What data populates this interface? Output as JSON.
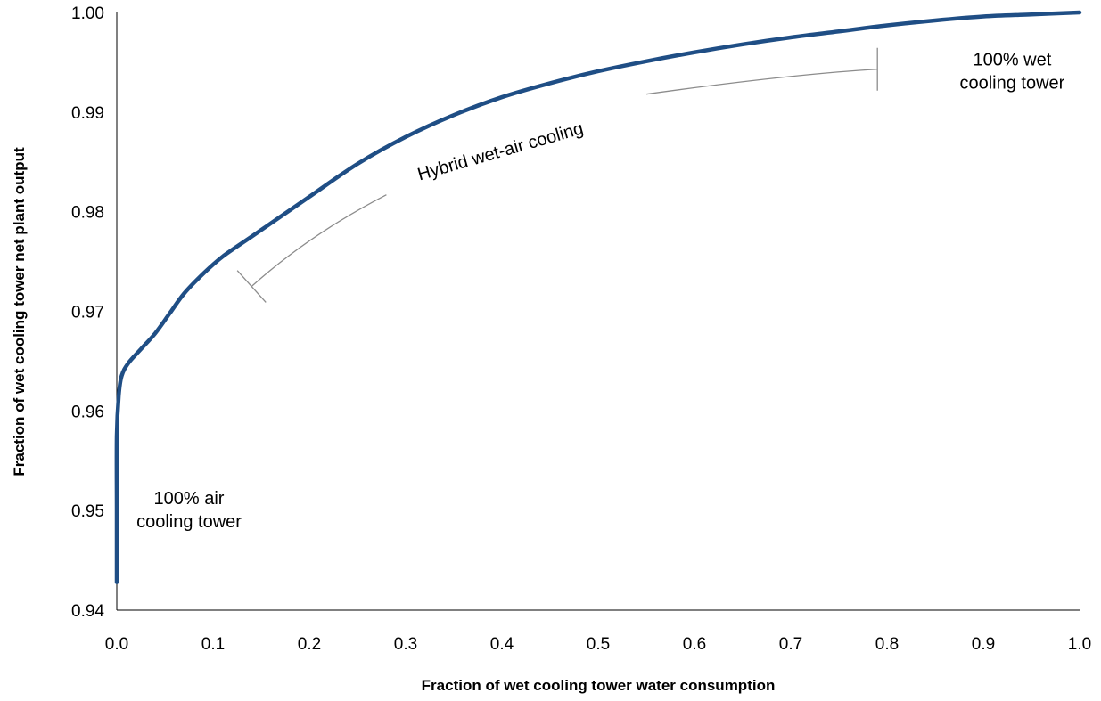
{
  "chart_data": {
    "type": "line",
    "title": "",
    "xlabel": "Fraction of wet cooling tower water consumption",
    "ylabel": "Fraction of wet cooling tower net plant output",
    "xlim": [
      0.0,
      1.0
    ],
    "ylim": [
      0.94,
      1.0
    ],
    "x_ticks": [
      "0.0",
      "0.1",
      "0.2",
      "0.3",
      "0.4",
      "0.5",
      "0.6",
      "0.7",
      "0.8",
      "0.9",
      "1.0"
    ],
    "y_ticks": [
      "0.94",
      "0.95",
      "0.96",
      "0.97",
      "0.98",
      "0.99",
      "1.00"
    ],
    "grid": false,
    "legend": "none",
    "series": [
      {
        "color": "#1f4e85",
        "x": [
          0.0,
          0.0,
          0.0,
          0.002,
          0.005,
          0.012,
          0.025,
          0.04,
          0.055,
          0.07,
          0.09,
          0.11,
          0.14,
          0.17,
          0.2,
          0.25,
          0.3,
          0.35,
          0.4,
          0.45,
          0.5,
          0.55,
          0.6,
          0.65,
          0.7,
          0.75,
          0.8,
          0.85,
          0.9,
          0.95,
          1.0
        ],
        "y": [
          0.9428,
          0.95,
          0.9575,
          0.9615,
          0.9635,
          0.9648,
          0.9662,
          0.9678,
          0.9698,
          0.9718,
          0.9738,
          0.9755,
          0.9775,
          0.9795,
          0.9815,
          0.9848,
          0.9875,
          0.9897,
          0.9915,
          0.9929,
          0.9941,
          0.9951,
          0.996,
          0.9968,
          0.9975,
          0.9981,
          0.9987,
          0.9992,
          0.9996,
          0.9998,
          1.0
        ]
      }
    ],
    "annotations": [
      {
        "lines": [
          "Hybrid wet-air cooling"
        ],
        "x": 0.4,
        "y": 0.9855,
        "rotate": -16
      },
      {
        "lines": [
          "100% wet",
          "cooling tower"
        ],
        "x": 0.93,
        "y": 0.9935
      },
      {
        "lines": [
          "100% air",
          "cooling tower"
        ],
        "x": 0.075,
        "y": 0.9495
      }
    ],
    "brackets": [
      {
        "points": [
          [
            0.55,
            0.9918
          ],
          [
            0.7,
            0.9938
          ],
          [
            0.79,
            0.9943
          ]
        ],
        "cap_at": [
          0.79,
          0.9943
        ],
        "cap_dir": "vertical"
      },
      {
        "points": [
          [
            0.28,
            0.9817
          ],
          [
            0.2,
            0.9777
          ],
          [
            0.14,
            0.9725
          ]
        ],
        "cap_at": [
          0.14,
          0.9725
        ],
        "cap_dir": "perpendicular"
      }
    ]
  }
}
